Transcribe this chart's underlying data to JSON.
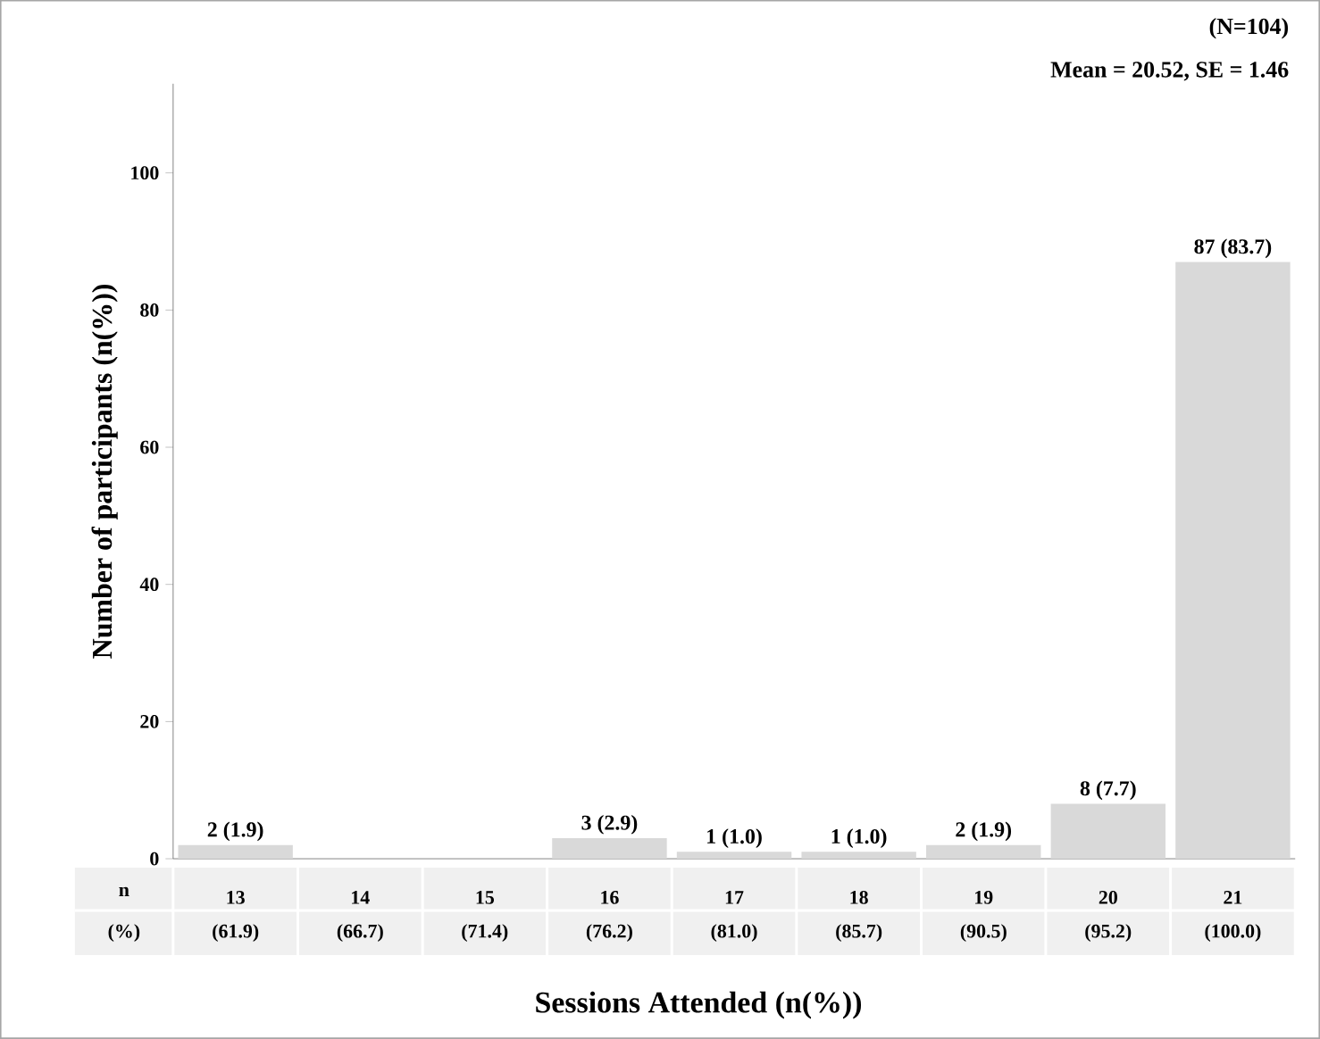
{
  "chart_data": {
    "type": "bar",
    "xlabel": "Sessions Attended (n(%))",
    "ylabel": "Number of participants (n(%))",
    "categories": [
      "13",
      "14",
      "15",
      "16",
      "17",
      "18",
      "19",
      "20",
      "21"
    ],
    "values": [
      2,
      0,
      0,
      3,
      1,
      1,
      2,
      8,
      87
    ],
    "value_labels": [
      "2 (1.9)",
      null,
      null,
      "3 (2.9)",
      "1 (1.0)",
      "1 (1.0)",
      "2 (1.9)",
      "8 (7.7)",
      "87 (83.7)"
    ],
    "color": "#d9d9d9",
    "ylim": [
      0,
      113
    ],
    "yticks": [
      0,
      20,
      40,
      60,
      80,
      100
    ],
    "annotations": [
      "(N=104)",
      "Mean = 20.52, SE = 1.46",
      "n",
      "(%)",
      "(61.9)",
      "(66.7)",
      "(71.4)",
      "(76.2)",
      "(81.0)",
      "(85.7)",
      "(90.5)",
      "(95.2)",
      "(100.0)"
    ]
  }
}
